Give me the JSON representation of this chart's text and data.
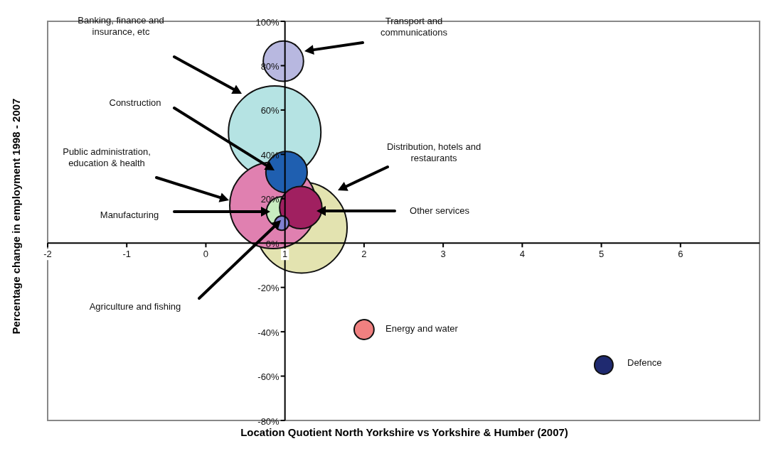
{
  "chart_data": {
    "type": "bubble",
    "xlabel": "Location Quotient North Yorkshire vs Yorkshire & Humber (2007)",
    "ylabel": "Percentage change in employment 1998 - 2007",
    "x": [
      0.87,
      1.21,
      0.85,
      1.02,
      0.96,
      1.2,
      0.96,
      0.98,
      2.0,
      5.03
    ],
    "values": [
      50,
      7,
      17,
      32,
      14,
      16,
      9,
      82,
      -39,
      -55
    ],
    "sizes": [
      1,
      0.97,
      0.88,
      0.2,
      0.11,
      0.21,
      0.024,
      0.19,
      0.046,
      0.04
    ],
    "colors": [
      "#b5e3e3",
      "#e3e3b0",
      "#e080b0",
      "#1f5fb0",
      "#c8ecc0",
      "#a02060",
      "#8080d0",
      "#b8b8e0",
      "#f08080",
      "#1f2a70"
    ],
    "xlim": [
      -2,
      7
    ],
    "xticks": [
      -2,
      -1,
      0,
      1,
      2,
      3,
      4,
      5,
      6
    ],
    "ylim": [
      -80,
      100
    ],
    "yticks": [
      {
        "value": -80,
        "label": "-80%"
      },
      {
        "value": -60,
        "label": "-60%"
      },
      {
        "value": -40,
        "label": "-40%"
      },
      {
        "value": -20,
        "label": "-20%"
      },
      {
        "value": 0,
        "label": "0%"
      },
      {
        "value": 20,
        "label": "20%"
      },
      {
        "value": 40,
        "label": "40%"
      },
      {
        "value": 60,
        "label": "60%"
      },
      {
        "value": 80,
        "label": "80%"
      },
      {
        "value": 100,
        "label": "100%"
      }
    ],
    "grid": false,
    "legend": false,
    "annotations": [
      "Banking, finance and insurance, etc",
      "Transport and communications",
      "Construction",
      "Public administration, education & health",
      "Distribution, hotels and restaurants",
      "Manufacturing",
      "Other services",
      "Agriculture and fishing",
      "Energy and water",
      "Defence"
    ]
  }
}
